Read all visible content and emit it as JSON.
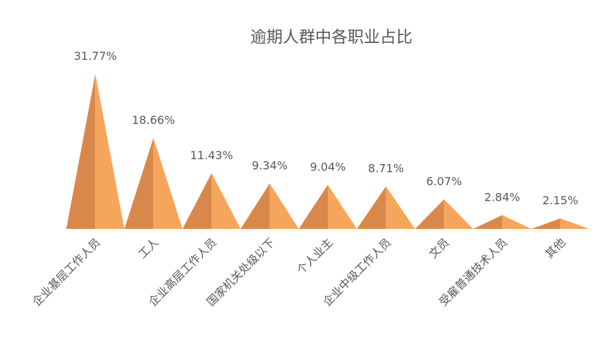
{
  "chart_data": {
    "type": "pyramid",
    "title": "逾期人群中各职业占比",
    "categories": [
      "企业基层工作人员",
      "工人",
      "企业高层工作人员",
      "国家机关处级以下",
      "个人业主",
      "企业中级工作人员",
      "文员",
      "受雇普通技术人员",
      "其他"
    ],
    "values": [
      31.77,
      18.66,
      11.43,
      9.34,
      9.04,
      8.71,
      6.07,
      2.84,
      2.15
    ],
    "value_labels": [
      "31.77%",
      "18.66%",
      "11.43%",
      "9.34%",
      "9.04%",
      "8.71%",
      "6.07%",
      "2.84%",
      "2.15%"
    ],
    "colors": [
      "#d9884b",
      "#f5a65c"
    ]
  }
}
